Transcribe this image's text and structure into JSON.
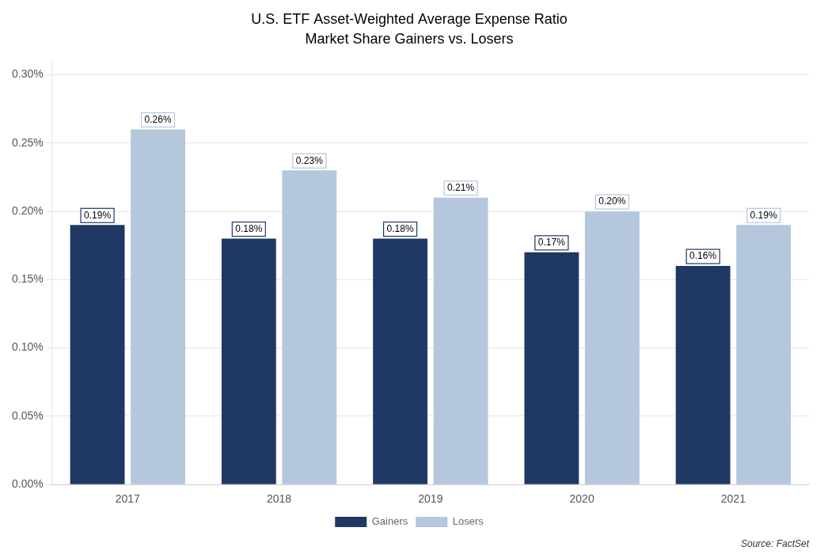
{
  "chart_data": {
    "type": "bar",
    "title": "U.S. ETF Asset-Weighted Average Expense Ratio",
    "subtitle": "Market Share Gainers vs. Losers",
    "categories": [
      "2017",
      "2018",
      "2019",
      "2020",
      "2021"
    ],
    "series": [
      {
        "name": "Gainers",
        "color": "#1F3864",
        "values": [
          0.0019,
          0.0018,
          0.0018,
          0.0017,
          0.0016
        ],
        "value_labels": [
          "0.19%",
          "0.18%",
          "0.18%",
          "0.17%",
          "0.16%"
        ]
      },
      {
        "name": "Losers",
        "color": "#B4C7DC",
        "values": [
          0.0026,
          0.0023,
          0.0021,
          0.002,
          0.0019
        ],
        "value_labels": [
          "0.26%",
          "0.23%",
          "0.21%",
          "0.20%",
          "0.19%"
        ]
      }
    ],
    "ylim": [
      0,
      0.0031
    ],
    "yticks": [
      {
        "value": 0.0,
        "label": "0.00%"
      },
      {
        "value": 0.0005,
        "label": "0.05%"
      },
      {
        "value": 0.001,
        "label": "0.10%"
      },
      {
        "value": 0.0015,
        "label": "0.15%"
      },
      {
        "value": 0.002,
        "label": "0.20%"
      },
      {
        "value": 0.0025,
        "label": "0.25%"
      },
      {
        "value": 0.003,
        "label": "0.30%"
      }
    ],
    "grid": true,
    "legend": "bottom",
    "data_labels": true,
    "annotations": [
      "Source: FactSet"
    ]
  }
}
